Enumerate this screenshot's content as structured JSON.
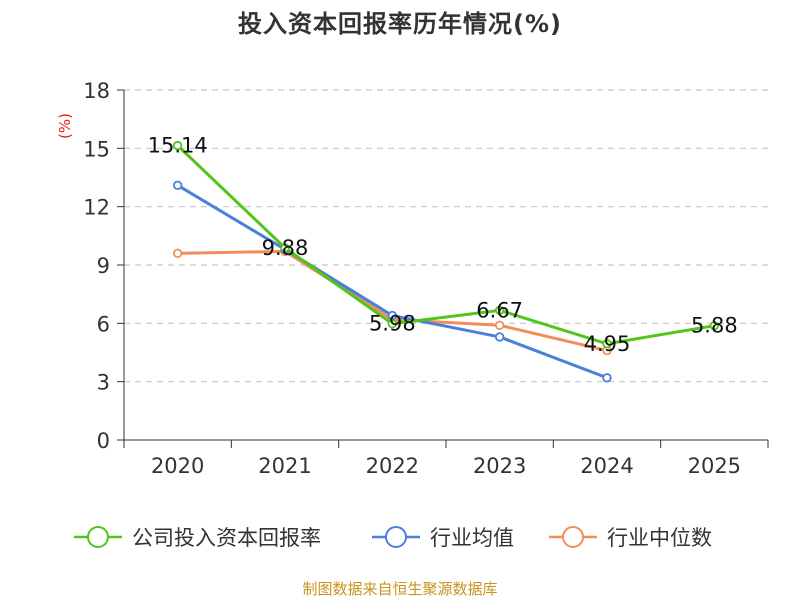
{
  "chart_data": {
    "type": "line",
    "title": "投入资本回报率历年情况(%)",
    "ylabel": "(%)",
    "xlabel": "",
    "categories": [
      "2020",
      "2021",
      "2022",
      "2023",
      "2024",
      "2025"
    ],
    "ylim": [
      0,
      18
    ],
    "yticks": [
      0,
      3,
      6,
      9,
      12,
      15,
      18
    ],
    "grid": true,
    "legend_position": "bottom",
    "series": [
      {
        "name": "公司投入资本回报率",
        "color": "#52c41a",
        "values": [
          15.14,
          9.88,
          5.98,
          6.67,
          4.95,
          5.88
        ],
        "labels": [
          "15.14",
          "9.88",
          "5.98",
          "6.67",
          "4.95",
          "5.88"
        ]
      },
      {
        "name": "行业均值",
        "color": "#4a7fdc",
        "values": [
          13.1,
          9.8,
          6.4,
          5.3,
          3.2,
          null
        ]
      },
      {
        "name": "行业中位数",
        "color": "#f28e5c",
        "values": [
          9.6,
          9.7,
          6.2,
          5.9,
          4.6,
          null
        ]
      }
    ]
  },
  "footer": {
    "source": "制图数据来自恒生聚源数据库"
  }
}
